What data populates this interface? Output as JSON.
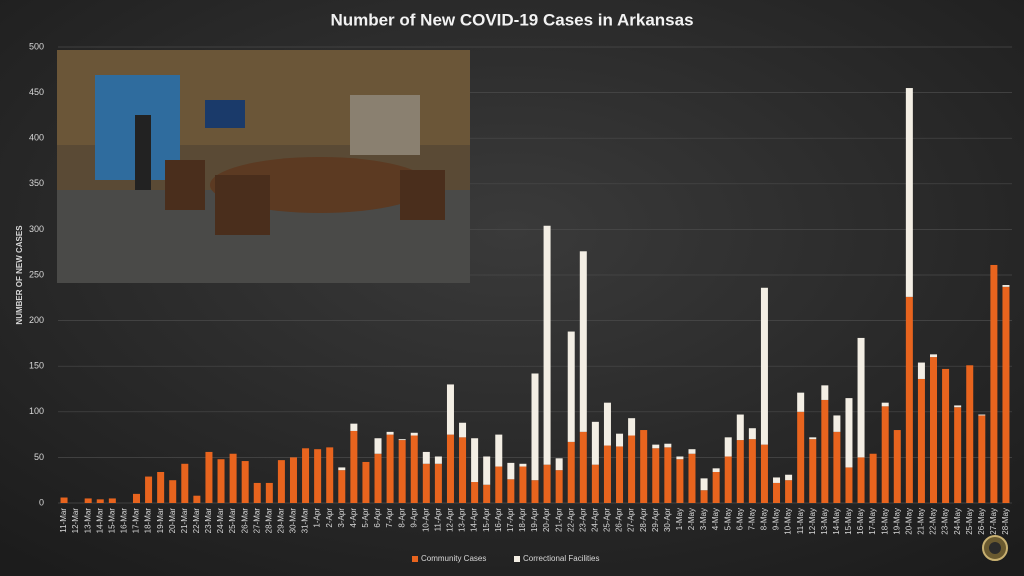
{
  "chart_data": {
    "type": "stacked_bar",
    "title": "Number of New COVID-19 Cases in Arkansas",
    "y_label": "NUMBER OF NEW CASES",
    "categories": [
      "11-Mar",
      "12-Mar",
      "13-Mar",
      "14-Mar",
      "15-Mar",
      "16-Mar",
      "17-Mar",
      "18-Mar",
      "19-Mar",
      "20-Mar",
      "21-Mar",
      "22-Mar",
      "23-Mar",
      "24-Mar",
      "25-Mar",
      "26-Mar",
      "27-Mar",
      "28-Mar",
      "29-Mar",
      "30-Mar",
      "31-Mar",
      "1-Apr",
      "2-Apr",
      "3-Apr",
      "4-Apr",
      "5-Apr",
      "6-Apr",
      "7-Apr",
      "8-Apr",
      "9-Apr",
      "10-Apr",
      "11-Apr",
      "12-Apr",
      "13-Apr",
      "14-Apr",
      "15-Apr",
      "16-Apr",
      "17-Apr",
      "18-Apr",
      "19-Apr",
      "20-Apr",
      "21-Apr",
      "22-Apr",
      "23-Apr",
      "24-Apr",
      "25-Apr",
      "26-Apr",
      "27-Apr",
      "28-Apr",
      "29-Apr",
      "30-Apr",
      "1-May",
      "2-May",
      "3-May",
      "4-May",
      "5-May",
      "6-May",
      "7-May",
      "8-May",
      "9-May",
      "10-May",
      "11-May",
      "12-May",
      "13-May",
      "14-May",
      "15-May",
      "16-May",
      "17-May",
      "18-May",
      "19-May",
      "20-May",
      "21-May",
      "22-May",
      "23-May",
      "24-May",
      "25-May",
      "26-May",
      "27-May",
      "28-May"
    ],
    "series": [
      {
        "name": "Community Cases",
        "color": "#e8641e",
        "values": [
          6,
          0,
          5,
          4,
          5,
          0,
          10,
          29,
          34,
          25,
          43,
          8,
          56,
          48,
          54,
          46,
          22,
          22,
          47,
          50,
          60,
          59,
          61,
          36,
          79,
          45,
          54,
          75,
          69,
          74,
          43,
          43,
          75,
          72,
          23,
          20,
          40,
          26,
          40,
          25,
          42,
          36,
          67,
          78,
          42,
          63,
          62,
          74,
          80,
          60,
          61,
          48,
          54,
          14,
          34,
          51,
          69,
          70,
          64,
          22,
          25,
          100,
          70,
          113,
          78,
          39,
          50,
          54,
          106,
          80,
          226,
          136,
          160,
          147,
          105,
          151,
          96,
          261,
          237
        ]
      },
      {
        "name": "Correctional Facilities",
        "color": "#f3eee4",
        "values": [
          0,
          0,
          0,
          0,
          0,
          0,
          0,
          0,
          0,
          0,
          0,
          0,
          0,
          0,
          0,
          0,
          0,
          0,
          0,
          0,
          0,
          0,
          0,
          3,
          8,
          0,
          17,
          3,
          1,
          3,
          13,
          8,
          55,
          16,
          48,
          31,
          35,
          18,
          3,
          117,
          262,
          13,
          121,
          198,
          47,
          47,
          14,
          19,
          0,
          4,
          4,
          3,
          5,
          13,
          4,
          21,
          28,
          12,
          172,
          6,
          6,
          21,
          2,
          16,
          18,
          76,
          131,
          0,
          4,
          0,
          229,
          18,
          3,
          0,
          2,
          0,
          1,
          0,
          2
        ]
      }
    ],
    "ylim": [
      0,
      500
    ],
    "yticks": [
      0,
      50,
      100,
      150,
      200,
      250,
      300,
      350,
      400,
      450,
      500
    ],
    "grid": true,
    "legend": "bottom"
  }
}
